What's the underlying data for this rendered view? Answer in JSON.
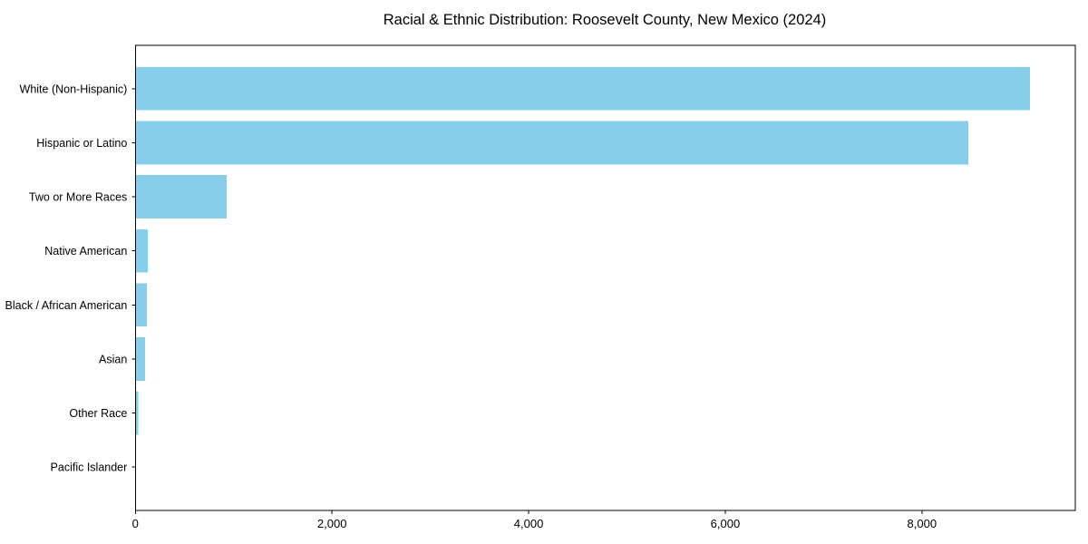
{
  "figure": {
    "background_color": "#ffffff"
  },
  "chart_data": {
    "type": "bar",
    "orientation": "horizontal",
    "title": "Racial & Ethnic Distribution: Roosevelt County, New Mexico (2024)",
    "xlabel": "",
    "ylabel": "",
    "categories": [
      "White (Non-Hispanic)",
      "Hispanic or Latino",
      "Two or More Races",
      "Native American",
      "Black / African American",
      "Asian",
      "Other Race",
      "Pacific Islander"
    ],
    "values": [
      9100,
      8470,
      930,
      125,
      115,
      100,
      30,
      5
    ],
    "xlim": [
      0,
      9560
    ],
    "xticks": {
      "values": [
        0,
        2000,
        4000,
        6000,
        8000
      ],
      "labels": [
        "0",
        "2,000",
        "4,000",
        "6,000",
        "8,000"
      ]
    },
    "grid": false,
    "legend": null,
    "colors": {
      "bar": "#87CEEB",
      "axis": "#000000",
      "text": "#000000",
      "background": "#ffffff"
    }
  }
}
